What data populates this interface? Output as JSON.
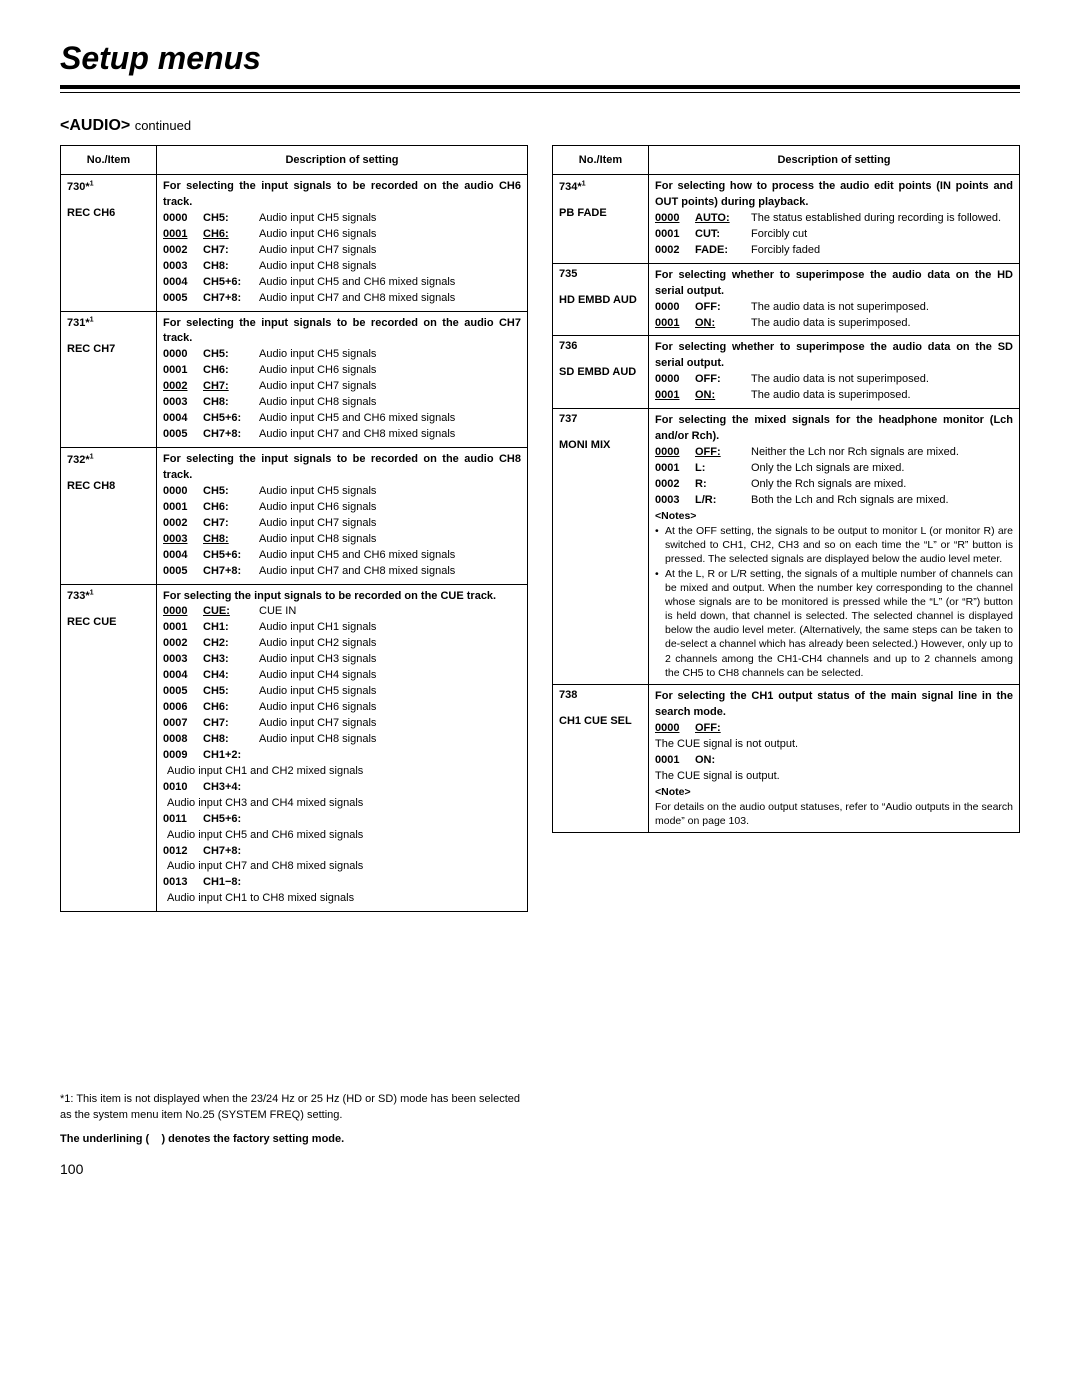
{
  "page": {
    "title": "Setup menus",
    "section": "<AUDIO>",
    "continued": "continued",
    "footnote": "*1: This item is not displayed when the 23/24 Hz or 25 Hz (HD or SD) mode has been selected as the system menu item No.25 (SYSTEM FREQ) setting.",
    "factory_note": "The underlining (    ) denotes the factory setting mode.",
    "page_number": "100",
    "hdr_item": "No./Item",
    "hdr_desc": "Description of setting"
  },
  "left": [
    {
      "no": "730*¹",
      "name": "REC CH6",
      "heading": "For selecting the input signals to be recorded on the audio CH6 track.",
      "opts": [
        {
          "code": "0000",
          "label": "CH5:",
          "text": "Audio input CH5 signals"
        },
        {
          "code": "0001",
          "label": "CH6:",
          "text": "Audio input CH6 signals",
          "u": true
        },
        {
          "code": "0002",
          "label": "CH7:",
          "text": "Audio input CH7 signals"
        },
        {
          "code": "0003",
          "label": "CH8:",
          "text": "Audio input CH8 signals"
        },
        {
          "code": "0004",
          "label": "CH5+6:",
          "text": "Audio input CH5 and CH6 mixed signals"
        },
        {
          "code": "0005",
          "label": "CH7+8:",
          "text": "Audio input CH7 and CH8 mixed signals"
        }
      ]
    },
    {
      "no": "731*¹",
      "name": "REC CH7",
      "heading": "For selecting the input signals to be recorded on the audio CH7 track.",
      "opts": [
        {
          "code": "0000",
          "label": "CH5:",
          "text": "Audio input CH5 signals"
        },
        {
          "code": "0001",
          "label": "CH6:",
          "text": "Audio input CH6 signals"
        },
        {
          "code": "0002",
          "label": "CH7:",
          "text": "Audio input CH7 signals",
          "u": true
        },
        {
          "code": "0003",
          "label": "CH8:",
          "text": "Audio input CH8 signals"
        },
        {
          "code": "0004",
          "label": "CH5+6:",
          "text": "Audio input CH5 and CH6 mixed signals"
        },
        {
          "code": "0005",
          "label": "CH7+8:",
          "text": "Audio input CH7 and CH8 mixed signals"
        }
      ]
    },
    {
      "no": "732*¹",
      "name": "REC CH8",
      "heading": "For selecting the input signals to be recorded on the audio CH8 track.",
      "opts": [
        {
          "code": "0000",
          "label": "CH5:",
          "text": "Audio input CH5 signals"
        },
        {
          "code": "0001",
          "label": "CH6:",
          "text": "Audio input CH6 signals"
        },
        {
          "code": "0002",
          "label": "CH7:",
          "text": "Audio input CH7 signals"
        },
        {
          "code": "0003",
          "label": "CH8:",
          "text": "Audio input CH8 signals",
          "u": true
        },
        {
          "code": "0004",
          "label": "CH5+6:",
          "text": "Audio input CH5 and CH6 mixed signals"
        },
        {
          "code": "0005",
          "label": "CH7+8:",
          "text": "Audio input CH7 and CH8 mixed signals"
        }
      ]
    },
    {
      "no": "733*¹",
      "name": "REC CUE",
      "heading": "For selecting the input signals to be recorded on the CUE track.",
      "opts": [
        {
          "code": "0000",
          "label": "CUE:",
          "text": "CUE IN",
          "u": true
        },
        {
          "code": "0001",
          "label": "CH1:",
          "text": "Audio input CH1 signals"
        },
        {
          "code": "0002",
          "label": "CH2:",
          "text": "Audio input CH2 signals"
        },
        {
          "code": "0003",
          "label": "CH3:",
          "text": "Audio input CH3 signals"
        },
        {
          "code": "0004",
          "label": "CH4:",
          "text": "Audio input CH4 signals"
        },
        {
          "code": "0005",
          "label": "CH5:",
          "text": "Audio input CH5 signals"
        },
        {
          "code": "0006",
          "label": "CH6:",
          "text": "Audio input CH6 signals"
        },
        {
          "code": "0007",
          "label": "CH7:",
          "text": "Audio input CH7 signals"
        },
        {
          "code": "0008",
          "label": "CH8:",
          "text": "Audio input CH8 signals"
        }
      ],
      "mixes": [
        {
          "code": "0009",
          "label": "CH1+2:",
          "text": "Audio input CH1 and CH2 mixed signals"
        },
        {
          "code": "0010",
          "label": "CH3+4:",
          "text": "Audio input CH3 and CH4 mixed signals"
        },
        {
          "code": "0011",
          "label": "CH5+6:",
          "text": "Audio input CH5 and CH6 mixed signals"
        },
        {
          "code": "0012",
          "label": "CH7+8:",
          "text": "Audio input CH7 and CH8 mixed signals"
        },
        {
          "code": "0013",
          "label": "CH1−8:",
          "text": "Audio input CH1 to CH8 mixed signals"
        }
      ]
    }
  ],
  "right": [
    {
      "no": "734*¹",
      "name": "PB FADE",
      "heading": "For selecting how to process the audio edit points (IN points and OUT points) during playback.",
      "opts": [
        {
          "code": "0000",
          "label": "AUTO:",
          "text": "The status established during recording is followed.",
          "u": true
        },
        {
          "code": "0001",
          "label": "CUT:",
          "text": "Forcibly cut"
        },
        {
          "code": "0002",
          "label": "FADE:",
          "text": "Forcibly faded"
        }
      ]
    },
    {
      "no": "735",
      "name": "HD EMBD AUD",
      "heading": "For selecting whether to superimpose the audio data on the HD serial output.",
      "opts": [
        {
          "code": "0000",
          "label": "OFF:",
          "text": "The audio data is not superimposed."
        },
        {
          "code": "0001",
          "label": "ON:",
          "text": "The audio data is superimposed.",
          "u": true
        }
      ]
    },
    {
      "no": "736",
      "name": "SD EMBD AUD",
      "heading": "For selecting whether to superimpose the audio data on the SD serial output.",
      "opts": [
        {
          "code": "0000",
          "label": "OFF:",
          "text": "The audio data is not superimposed."
        },
        {
          "code": "0001",
          "label": "ON:",
          "text": "The audio data is superimposed.",
          "u": true
        }
      ]
    },
    {
      "no": "737",
      "name": "MONI MIX",
      "heading": "For selecting the mixed signals for the headphone monitor (Lch and/or Rch).",
      "opts": [
        {
          "code": "0000",
          "label": "OFF:",
          "text": "Neither the Lch nor Rch signals are mixed.",
          "u": true
        },
        {
          "code": "0001",
          "label": "L:",
          "text": "Only the Lch signals are mixed."
        },
        {
          "code": "0002",
          "label": "R:",
          "text": "Only the Rch signals are mixed."
        },
        {
          "code": "0003",
          "label": "L/R:",
          "text": "Both the Lch and Rch signals are mixed."
        }
      ],
      "notes_head": "<Notes>",
      "notes": [
        "At the OFF setting, the signals to be output to monitor L (or monitor R) are switched to CH1, CH2, CH3 and so on each time the “L” or “R” button is pressed. The selected signals are displayed below the audio level meter.",
        "At the L, R or L/R setting, the signals of a multiple number of channels can be mixed and output. When the number key corresponding to the channel whose signals are to be monitored is pressed while the “L” (or “R”) button is held down, that channel is selected. The selected channel is displayed below the audio level meter. (Alternatively, the same steps can be taken to de-select a channel which has already been selected.) However, only up to 2 channels among the CH1-CH4 channels and up to 2 channels among the CH5 to CH8 channels can be selected."
      ]
    },
    {
      "no": "738",
      "name": "CH1 CUE SEL",
      "heading": "For selecting the CH1 output status of the main signal line in the search mode.",
      "opts2": [
        {
          "code": "0000",
          "label": "OFF:",
          "sub": "The CUE signal is not output.",
          "u": true
        },
        {
          "code": "0001",
          "label": "ON:",
          "sub": "The CUE signal is output."
        }
      ],
      "note_head": "<Note>",
      "note_body": "For details on the audio output statuses, refer to “Audio outputs in the search mode” on page 103."
    }
  ]
}
